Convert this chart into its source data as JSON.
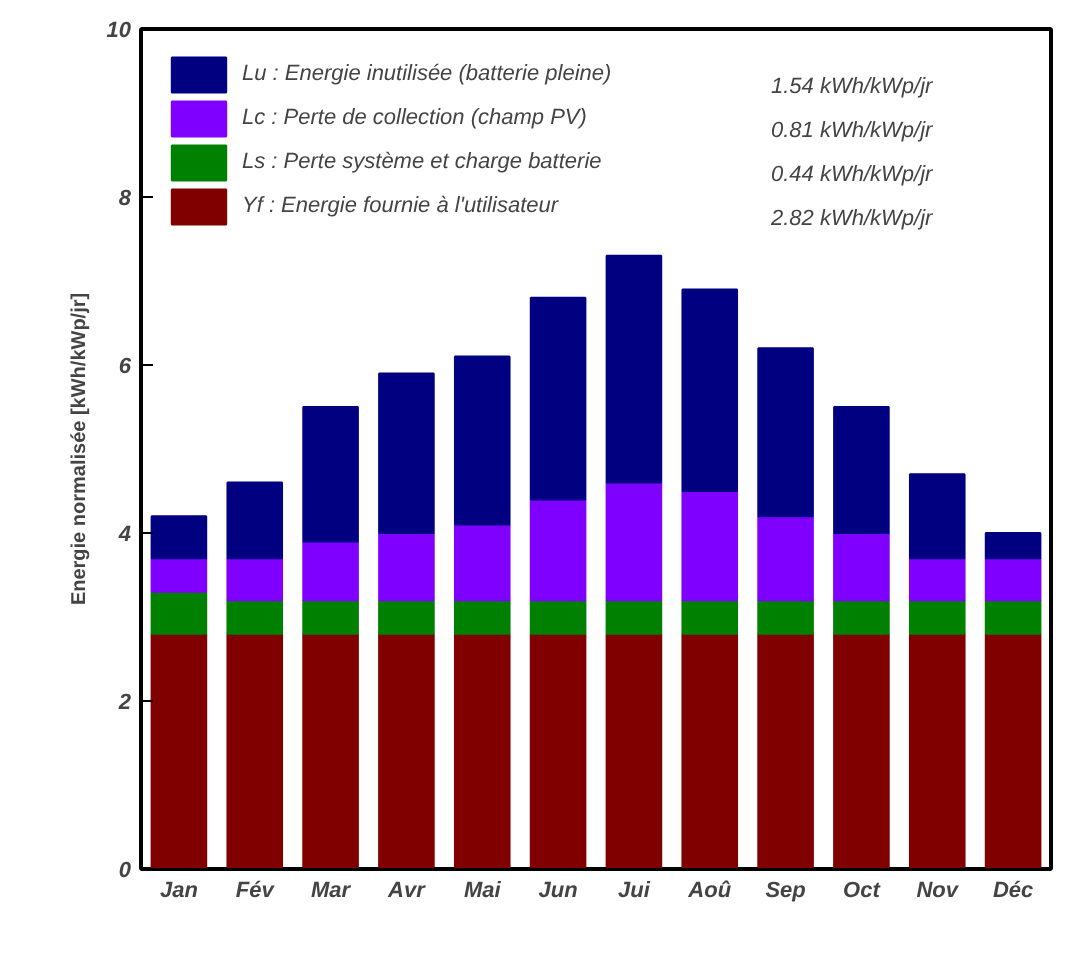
{
  "chart_data": {
    "type": "bar",
    "stacked": true,
    "ylabel": "Energie normalisée [kWh/kWp/jr]",
    "categories": [
      "Jan",
      "Fév",
      "Mar",
      "Avr",
      "Mai",
      "Jun",
      "Jui",
      "Aoû",
      "Sep",
      "Oct",
      "Nov",
      "Déc"
    ],
    "series": [
      {
        "name": "Yf : Energie fournie à l'utilisateur",
        "color": "#800000",
        "values": [
          2.8,
          2.8,
          2.8,
          2.8,
          2.8,
          2.8,
          2.8,
          2.8,
          2.8,
          2.8,
          2.8,
          2.8
        ]
      },
      {
        "name": "Ls : Perte système et charge batterie",
        "color": "#008000",
        "values": [
          0.5,
          0.4,
          0.4,
          0.4,
          0.4,
          0.4,
          0.4,
          0.4,
          0.4,
          0.4,
          0.4,
          0.4
        ]
      },
      {
        "name": "Lc : Perte de collection (champ PV)",
        "color": "#8000ff",
        "values": [
          0.4,
          0.5,
          0.7,
          0.8,
          0.9,
          1.2,
          1.4,
          1.3,
          1.0,
          0.8,
          0.5,
          0.5
        ]
      },
      {
        "name": "Lu : Energie inutilisée (batterie pleine)",
        "color": "#000080",
        "values": [
          0.5,
          0.9,
          1.6,
          1.9,
          2.0,
          2.4,
          2.7,
          2.4,
          2.0,
          1.5,
          1.0,
          0.3
        ]
      }
    ],
    "ylim": [
      0,
      10
    ],
    "yticks": [
      0,
      2,
      4,
      6,
      8,
      10
    ],
    "legend": "top left",
    "annotations": [
      "2.82 kWh/kWp/jr",
      "0.44 kWh/kWp/jr",
      "0.81 kWh/kWp/jr",
      "1.54 kWh/kWp/jr"
    ]
  }
}
